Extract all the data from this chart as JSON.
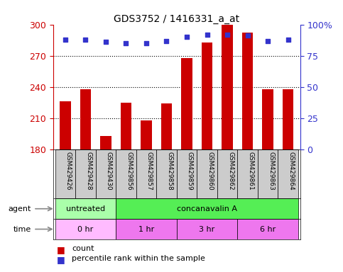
{
  "title": "GDS3752 / 1416331_a_at",
  "samples": [
    "GSM429426",
    "GSM429428",
    "GSM429430",
    "GSM429856",
    "GSM429857",
    "GSM429858",
    "GSM429859",
    "GSM429860",
    "GSM429862",
    "GSM429861",
    "GSM429863",
    "GSM429864"
  ],
  "counts": [
    226,
    238,
    193,
    225,
    208,
    224,
    268,
    283,
    300,
    292,
    238,
    238
  ],
  "percentile_ranks": [
    88,
    88,
    86,
    85,
    85,
    87,
    90,
    92,
    92,
    91,
    87,
    88
  ],
  "bar_color": "#cc0000",
  "dot_color": "#3333cc",
  "ylim_left": [
    180,
    300
  ],
  "ylim_right": [
    0,
    100
  ],
  "yticks_left": [
    180,
    210,
    240,
    270,
    300
  ],
  "yticks_right": [
    0,
    25,
    50,
    75,
    100
  ],
  "agent_groups": [
    {
      "label": "untreated",
      "start": 0,
      "end": 3,
      "color": "#aaffaa"
    },
    {
      "label": "concanavalin A",
      "start": 3,
      "end": 12,
      "color": "#55ee55"
    }
  ],
  "time_groups": [
    {
      "label": "0 hr",
      "start": 0,
      "end": 3,
      "color": "#ffbbff"
    },
    {
      "label": "1 hr",
      "start": 3,
      "end": 6,
      "color": "#ee77ee"
    },
    {
      "label": "3 hr",
      "start": 6,
      "end": 9,
      "color": "#ee77ee"
    },
    {
      "label": "6 hr",
      "start": 9,
      "end": 12,
      "color": "#ee77ee"
    }
  ],
  "legend_count_color": "#cc0000",
  "legend_dot_color": "#3333cc",
  "left_axis_color": "#cc0000",
  "right_axis_color": "#3333cc",
  "grid_yticks": [
    210,
    240,
    270
  ],
  "sample_cell_color": "#cccccc"
}
